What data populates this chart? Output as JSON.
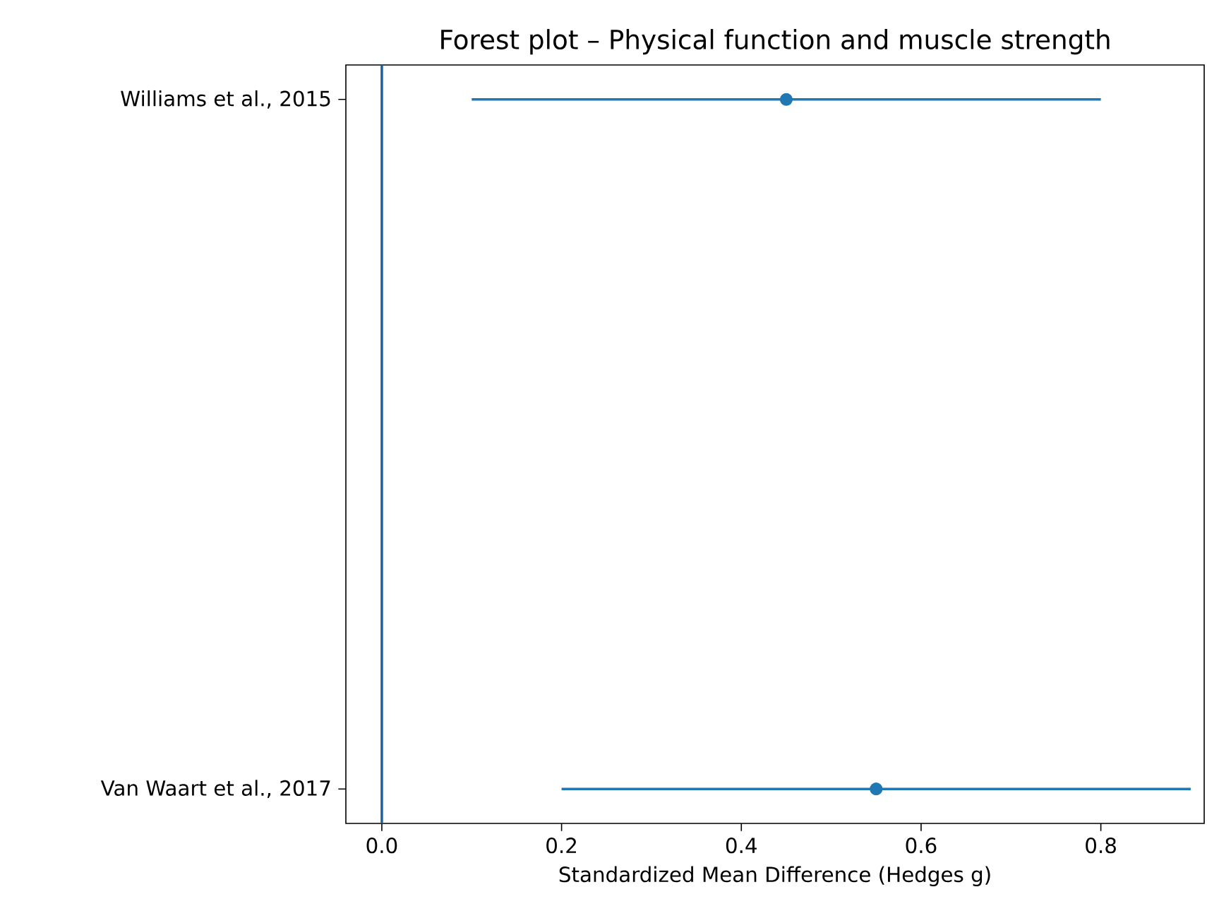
{
  "chart_data": {
    "type": "scatter",
    "orientation": "horizontal",
    "title": "Forest plot – Physical function and muscle strength",
    "xlabel": "Standardized Mean Difference (Hedges g)",
    "categories": [
      "Williams et al., 2015",
      "Van Waart et al., 2017"
    ],
    "values": [
      0.45,
      0.55
    ],
    "errors": [
      [
        0.1,
        0.8
      ],
      [
        0.2,
        0.9
      ]
    ],
    "color": "#1f77b4",
    "marker": "circle",
    "ref_lines": [
      {
        "axis": "x",
        "value": 0,
        "color": "#1f5f96"
      }
    ],
    "xlim": [
      -0.04,
      0.915
    ],
    "xticks": [
      {
        "value": 0,
        "label": "0.0"
      },
      0.2,
      0.4,
      0.6,
      0.8
    ]
  }
}
